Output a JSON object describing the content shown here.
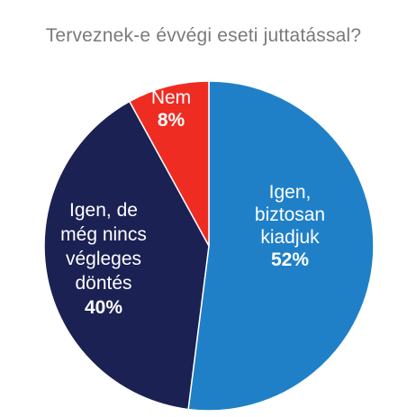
{
  "chart_data": {
    "type": "pie",
    "title": "Terveznek-e évvégi eseti juttatással?",
    "start_angle_deg": 0,
    "direction": "clockwise",
    "slices": [
      {
        "label_lines": [
          "Igen,",
          "biztosan",
          "kiadjuk"
        ],
        "pct_text": "52%",
        "value": 52,
        "color": "#1f80c8"
      },
      {
        "label_lines": [
          "Igen, de",
          "még nincs",
          "végleges",
          "döntés"
        ],
        "pct_text": "40%",
        "value": 40,
        "color": "#1b2153"
      },
      {
        "label_lines": [
          "Nem"
        ],
        "pct_text": "8%",
        "value": 8,
        "color": "#ef2c22"
      }
    ]
  },
  "colors": {
    "background": "#ffffff",
    "title": "#7a7a7a",
    "slice_border": "#ffffff",
    "label_text": "#ffffff"
  }
}
